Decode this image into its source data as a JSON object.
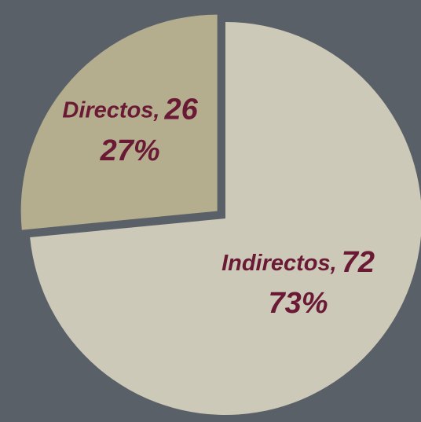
{
  "chart_data": {
    "type": "pie",
    "categories": [
      "Directos,",
      "Indirectos,"
    ],
    "values": [
      26,
      72
    ],
    "percentages": [
      27,
      73
    ],
    "percentage_labels": [
      "27%",
      "73%"
    ],
    "colors": [
      "#b4ae8e",
      "#cdc9b8"
    ],
    "explode": [
      true,
      false
    ],
    "label_color": "#6b1a35",
    "background": "#5a6068"
  }
}
